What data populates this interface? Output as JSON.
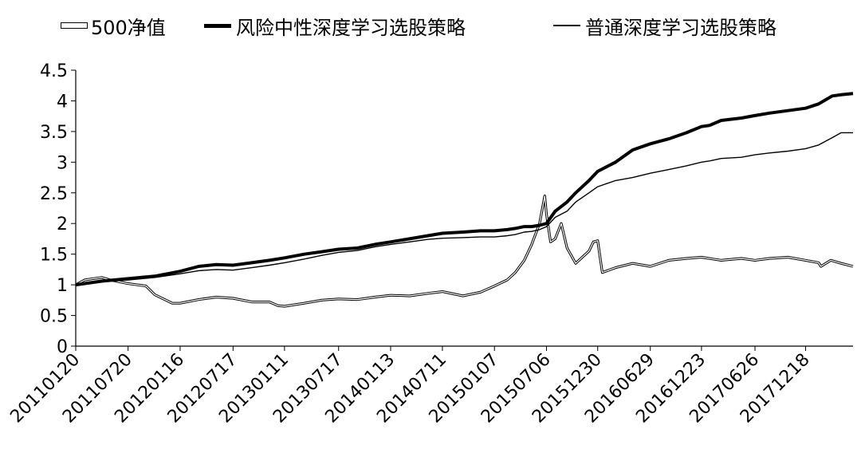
{
  "chart_data": {
    "type": "line",
    "title": "",
    "xlabel": "",
    "ylabel": "",
    "ylim": [
      0,
      4.5
    ],
    "yticks": [
      "0",
      "0.5",
      "1",
      "1.5",
      "2",
      "2.5",
      "3",
      "3.5",
      "4",
      "4.5"
    ],
    "xticks": [
      "20110120",
      "20110720",
      "20120116",
      "20120717",
      "20130111",
      "20130717",
      "20140113",
      "20140711",
      "20150107",
      "20150706",
      "20151230",
      "20160629",
      "20161223",
      "20170626",
      "20171218"
    ],
    "x_range": [
      "20110120",
      "20180531"
    ],
    "grid": false,
    "legend_position": "top",
    "series": [
      {
        "name": "500净值",
        "style": "outline",
        "x": [
          "20110120",
          "20110220",
          "20110320",
          "20110420",
          "20110520",
          "20110720",
          "20110920",
          "20111020",
          "20111220",
          "20120116",
          "20120320",
          "20120520",
          "20120717",
          "20120920",
          "20121120",
          "20121220",
          "20130111",
          "20130320",
          "20130520",
          "20130717",
          "20130920",
          "20131120",
          "20140113",
          "20140320",
          "20140520",
          "20140711",
          "20140920",
          "20141120",
          "20150107",
          "20150220",
          "20150320",
          "20150420",
          "20150515",
          "20150612",
          "20150630",
          "20150706",
          "20150720",
          "20150805",
          "20150826",
          "20150915",
          "20151015",
          "20151130",
          "20151215",
          "20151230",
          "20160115",
          "20160301",
          "20160429",
          "20160629",
          "20160901",
          "20161101",
          "20161223",
          "20170301",
          "20170510",
          "20170626",
          "20170815",
          "20171018",
          "20171218",
          "20180201",
          "20180209",
          "20180315",
          "20180420",
          "20180531"
        ],
        "values": [
          1.0,
          1.08,
          1.1,
          1.12,
          1.08,
          1.02,
          0.98,
          0.84,
          0.7,
          0.7,
          0.76,
          0.8,
          0.78,
          0.72,
          0.72,
          0.66,
          0.65,
          0.7,
          0.75,
          0.77,
          0.76,
          0.8,
          0.83,
          0.82,
          0.86,
          0.89,
          0.82,
          0.88,
          0.98,
          1.08,
          1.2,
          1.4,
          1.65,
          2.0,
          2.45,
          2.15,
          1.7,
          1.75,
          2.0,
          1.6,
          1.35,
          1.55,
          1.7,
          1.72,
          1.2,
          1.28,
          1.35,
          1.3,
          1.4,
          1.43,
          1.45,
          1.4,
          1.43,
          1.4,
          1.43,
          1.45,
          1.4,
          1.36,
          1.3,
          1.4,
          1.35,
          1.3
        ]
      },
      {
        "name": "风险中性深度学习选股策略",
        "style": "thick",
        "x": [
          "20110120",
          "20110420",
          "20110720",
          "20111020",
          "20120116",
          "20120320",
          "20120520",
          "20120717",
          "20120920",
          "20121120",
          "20130111",
          "20130320",
          "20130520",
          "20130717",
          "20130920",
          "20131120",
          "20140113",
          "20140320",
          "20140520",
          "20140711",
          "20140920",
          "20141120",
          "20150107",
          "20150220",
          "20150320",
          "20150420",
          "20150515",
          "20150612",
          "20150706",
          "20150805",
          "20150915",
          "20151015",
          "20151130",
          "20151230",
          "20160301",
          "20160429",
          "20160629",
          "20160901",
          "20161101",
          "20161223",
          "20170120",
          "20170301",
          "20170510",
          "20170626",
          "20170815",
          "20171018",
          "20171218",
          "20180201",
          "20180320",
          "20180420",
          "20180531"
        ],
        "values": [
          1.0,
          1.06,
          1.1,
          1.14,
          1.22,
          1.3,
          1.33,
          1.32,
          1.36,
          1.4,
          1.44,
          1.5,
          1.54,
          1.58,
          1.6,
          1.66,
          1.7,
          1.75,
          1.8,
          1.84,
          1.86,
          1.88,
          1.88,
          1.9,
          1.92,
          1.95,
          1.95,
          1.97,
          2.0,
          2.2,
          2.35,
          2.5,
          2.7,
          2.85,
          3.0,
          3.2,
          3.3,
          3.38,
          3.48,
          3.58,
          3.6,
          3.68,
          3.72,
          3.76,
          3.8,
          3.84,
          3.88,
          3.95,
          4.08,
          4.1,
          4.12
        ]
      },
      {
        "name": "普通深度学习选股策略",
        "style": "thin",
        "x": [
          "20110120",
          "20110420",
          "20110720",
          "20111020",
          "20120116",
          "20120320",
          "20120520",
          "20120717",
          "20120920",
          "20121120",
          "20130111",
          "20130320",
          "20130520",
          "20130717",
          "20130920",
          "20131120",
          "20140113",
          "20140320",
          "20140520",
          "20140711",
          "20140920",
          "20141120",
          "20150107",
          "20150220",
          "20150320",
          "20150420",
          "20150515",
          "20150612",
          "20150706",
          "20150805",
          "20150915",
          "20151015",
          "20151130",
          "20151230",
          "20160301",
          "20160429",
          "20160629",
          "20160901",
          "20161101",
          "20161223",
          "20170120",
          "20170301",
          "20170510",
          "20170626",
          "20170815",
          "20171018",
          "20171218",
          "20180201",
          "20180320",
          "20180420",
          "20180531"
        ],
        "values": [
          1.0,
          1.05,
          1.08,
          1.12,
          1.18,
          1.23,
          1.25,
          1.24,
          1.28,
          1.32,
          1.36,
          1.42,
          1.48,
          1.53,
          1.56,
          1.62,
          1.66,
          1.7,
          1.74,
          1.76,
          1.77,
          1.78,
          1.78,
          1.8,
          1.82,
          1.86,
          1.87,
          1.9,
          1.95,
          2.1,
          2.2,
          2.35,
          2.5,
          2.6,
          2.7,
          2.75,
          2.82,
          2.88,
          2.94,
          3.0,
          3.02,
          3.06,
          3.08,
          3.12,
          3.15,
          3.18,
          3.22,
          3.28,
          3.4,
          3.48,
          3.48
        ]
      }
    ]
  }
}
